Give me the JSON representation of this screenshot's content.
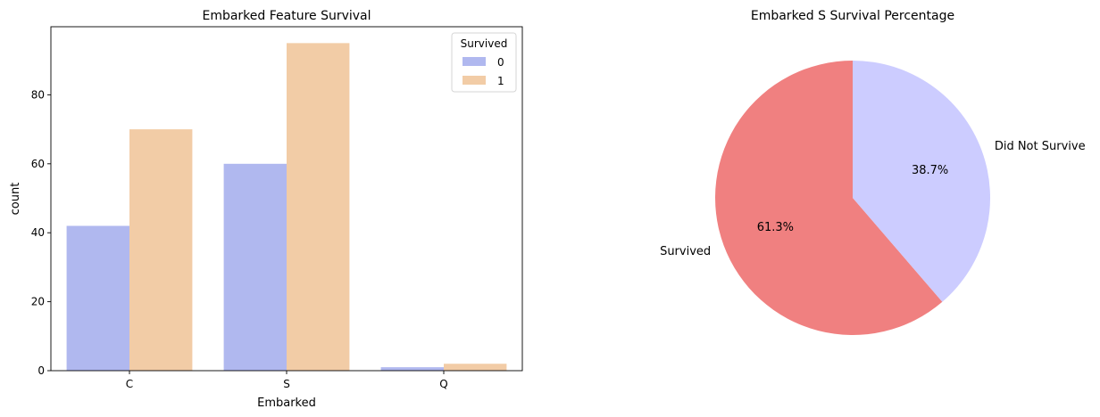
{
  "chart_data": [
    {
      "type": "bar",
      "title": "Embarked Feature Survival",
      "xlabel": "Embarked",
      "ylabel": "count",
      "categories": [
        "C",
        "S",
        "Q"
      ],
      "series": [
        {
          "name": "0",
          "values": [
            42,
            60,
            1
          ],
          "color": "#b0b8ef"
        },
        {
          "name": "1",
          "values": [
            70,
            95,
            2
          ],
          "color": "#f2cca6"
        }
      ],
      "ylim": [
        0,
        99.75
      ],
      "yticks": [
        0,
        20,
        40,
        60,
        80
      ],
      "legend": {
        "title": "Survived",
        "placement": "top-right"
      },
      "grid": false
    },
    {
      "type": "pie",
      "title": "Embarked S Survival Percentage",
      "slices": [
        {
          "label": "Survived",
          "value": 61.3,
          "pct_label": "61.3%",
          "color": "#f08080"
        },
        {
          "label": "Did Not Survive",
          "value": 38.7,
          "pct_label": "38.7%",
          "color": "#ccccff"
        }
      ],
      "startangle": 90,
      "direction": "counterclockwise"
    }
  ]
}
